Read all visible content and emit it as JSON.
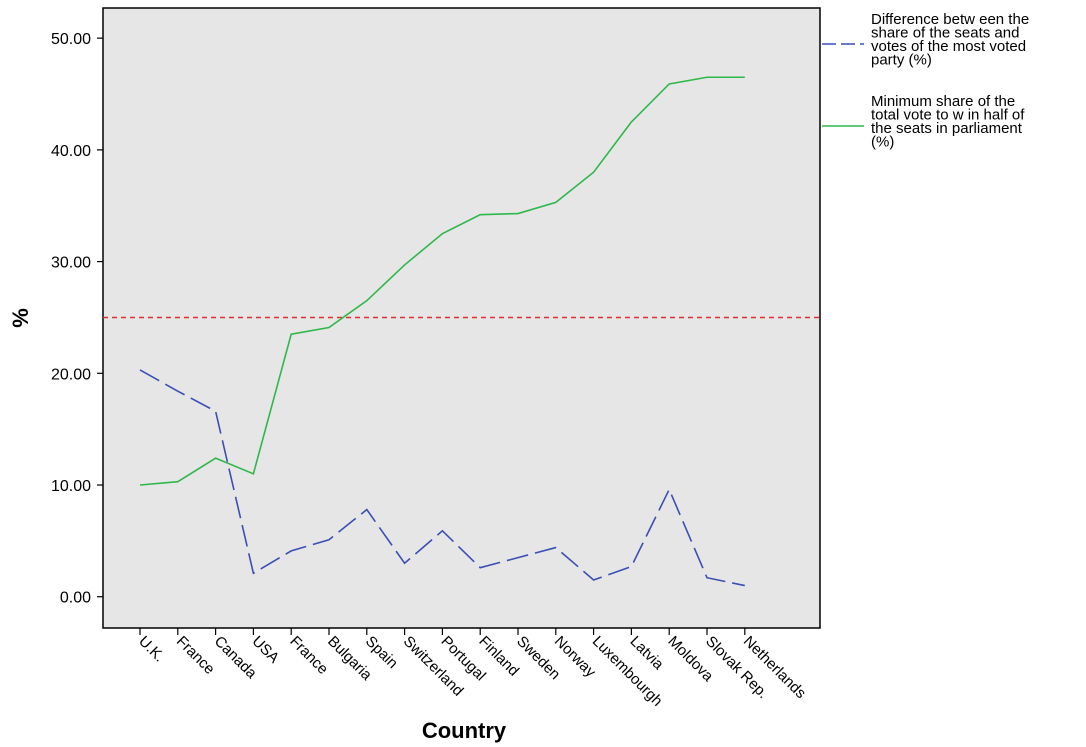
{
  "chart_data": {
    "type": "line",
    "xlabel": "Country",
    "ylabel": "%",
    "categories": [
      "U.K.",
      "France",
      "Canada",
      "USA",
      "France",
      "Bulgaria",
      "Spain",
      "Switzerland",
      "Portugal",
      "Finland",
      "Sweden",
      "Norway",
      "Luxembourgh",
      "Latvia",
      "Moldova",
      "Slovak Rep.",
      "Netherlands"
    ],
    "y_ticks": [
      "0.00",
      "10.00",
      "20.00",
      "30.00",
      "40.00",
      "50.00"
    ],
    "ylim": [
      -2.8,
      52.7
    ],
    "grid": false,
    "legend_position": "right",
    "reference_line": {
      "y": 25,
      "color": "#e03030",
      "style": "dashed"
    },
    "series": [
      {
        "name": "Difference betw een the share of the seats and votes of the most voted party (%)",
        "legend_lines": [
          "Difference betw een the",
          "share of the seats and",
          "votes of the most voted",
          "party (%)"
        ],
        "color": "#3a4fb5",
        "style": "dashed",
        "values": [
          20.3,
          18.4,
          16.6,
          2.1,
          4.1,
          5.1,
          7.8,
          3.0,
          5.9,
          2.6,
          3.5,
          4.4,
          1.5,
          2.7,
          9.6,
          1.7,
          1.0
        ]
      },
      {
        "name": "Minimum share of the total vote to w in half of the seats in parliament (%)",
        "legend_lines": [
          "Minimum share of the",
          "total vote to w in half of",
          "the seats in parliament",
          "(%)"
        ],
        "color": "#2eb84a",
        "style": "solid",
        "values": [
          10.0,
          10.3,
          12.4,
          11.0,
          23.5,
          24.1,
          26.5,
          29.7,
          32.5,
          34.2,
          34.3,
          35.3,
          38.0,
          42.5,
          45.9,
          46.5,
          46.5
        ]
      }
    ]
  }
}
